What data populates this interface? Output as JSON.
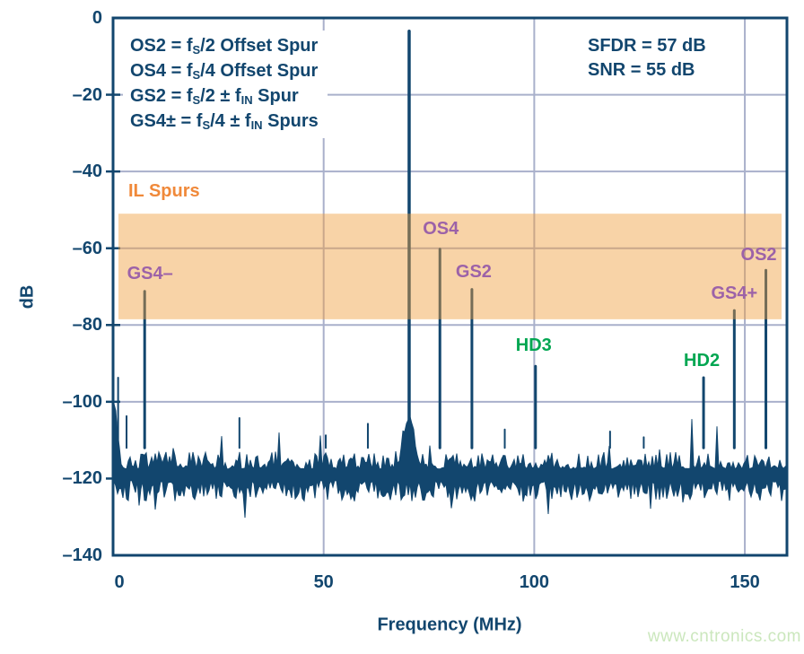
{
  "watermark": "www.cntronics.com",
  "colors": {
    "navy": "#12466e",
    "grid": "#a9b0cb",
    "band_overlay": "rgba(239,157,59,0.45)",
    "orange": "#f0893a",
    "purple": "#9c62a8",
    "green": "#00a651",
    "watermark_green": "#cbe7bd"
  },
  "chart_data": {
    "type": "line",
    "title": "",
    "xlabel": "Frequency (MHz)",
    "ylabel": "dB",
    "xlim": [
      0,
      160
    ],
    "ylim": [
      -140,
      0
    ],
    "grid": "on",
    "x_ticks": [
      {
        "v": 0,
        "label": "0"
      },
      {
        "v": 50,
        "label": "50"
      },
      {
        "v": 100,
        "label": "100"
      },
      {
        "v": 150,
        "label": "150"
      }
    ],
    "y_ticks": [
      {
        "v": 0,
        "label": "0"
      },
      {
        "v": -20,
        "label": "–20"
      },
      {
        "v": -40,
        "label": "–40"
      },
      {
        "v": -60,
        "label": "–60"
      },
      {
        "v": -80,
        "label": "–80"
      },
      {
        "v": -100,
        "label": "–100"
      },
      {
        "v": -120,
        "label": "–120"
      },
      {
        "v": -140,
        "label": "–140"
      }
    ],
    "legend_lines": [
      [
        {
          "t": "OS2 = f"
        },
        {
          "t": "S",
          "sub": true
        },
        {
          "t": "/2 Offset Spur"
        }
      ],
      [
        {
          "t": "OS4 = f"
        },
        {
          "t": "S",
          "sub": true
        },
        {
          "t": "/4 Offset Spur"
        }
      ],
      [
        {
          "t": "GS2 = f"
        },
        {
          "t": "S",
          "sub": true
        },
        {
          "t": "/2 ± f"
        },
        {
          "t": "IN",
          "sub": true
        },
        {
          "t": " Spur"
        }
      ],
      [
        {
          "t": "GS4± = f"
        },
        {
          "t": "S",
          "sub": true
        },
        {
          "t": "/4 ± f"
        },
        {
          "t": "IN",
          "sub": true
        },
        {
          "t": " Spurs"
        }
      ]
    ],
    "stats": [
      "SFDR = 57 dB",
      "SNR = 55 dB"
    ],
    "il_band": {
      "label": "IL Spurs",
      "top_db": -51,
      "bottom_db": -78.5
    },
    "carrier": {
      "f": 70.3,
      "db": -3.2
    },
    "spurs": [
      {
        "f": 1.2,
        "db": -93.5,
        "minor": true
      },
      {
        "f": 3.2,
        "db": -103.5,
        "minor": true
      },
      {
        "f": 7.5,
        "db": -71,
        "name": "GS4-"
      },
      {
        "f": 30,
        "db": -104,
        "minor": true
      },
      {
        "f": 50.5,
        "db": -108.5,
        "minor": true
      },
      {
        "f": 60.5,
        "db": -105.5,
        "minor": true
      },
      {
        "f": 70.3,
        "db": -3.2,
        "name": "carrier",
        "carrier": true
      },
      {
        "f": 77.6,
        "db": -60,
        "name": "OS4"
      },
      {
        "f": 85.2,
        "db": -70.5,
        "name": "GS2"
      },
      {
        "f": 93,
        "db": -107,
        "minor": true
      },
      {
        "f": 100.3,
        "db": -90.5,
        "name": "HD3"
      },
      {
        "f": 118,
        "db": -107.5,
        "minor": true
      },
      {
        "f": 126,
        "db": -109,
        "minor": true
      },
      {
        "f": 140.2,
        "db": -93.5,
        "name": "HD2"
      },
      {
        "f": 147.5,
        "db": -76,
        "name": "GS4+"
      },
      {
        "f": 155,
        "db": -65.5,
        "name": "OS2"
      }
    ],
    "annotations": [
      {
        "text": "GS4–",
        "f": 7.5,
        "db": -71,
        "dx": 6,
        "gap": 8,
        "color": "purple"
      },
      {
        "text": "OS4",
        "f": 77.6,
        "db": -60,
        "dx": 1,
        "gap": 11,
        "color": "purple"
      },
      {
        "text": "GS2",
        "f": 85.2,
        "db": -70.5,
        "dx": 2,
        "gap": 8,
        "color": "purple"
      },
      {
        "text": "HD3",
        "f": 100.3,
        "db": -90.5,
        "dx": -2,
        "gap": 11,
        "color": "green"
      },
      {
        "text": "HD2",
        "f": 140.2,
        "db": -93.5,
        "dx": -2,
        "gap": 7,
        "color": "green"
      },
      {
        "text": "GS4+",
        "f": 147.5,
        "db": -76,
        "dx": 0,
        "gap": 7,
        "color": "purple"
      },
      {
        "text": "OS2",
        "f": 155,
        "db": -65.5,
        "dx": -8,
        "gap": 5,
        "color": "purple"
      }
    ],
    "noise": {
      "seed": 7,
      "mean_db": -117.5,
      "upper_jitter_db": 4.5,
      "lower_jitter_db": 5.5,
      "spike_prob": 0.022,
      "spike_extra_db": 8,
      "dip_prob": 0.05,
      "dip_extra_db": 5.5,
      "bumps": [
        {
          "f": 0.2,
          "amp": 17,
          "sigma": 0.7
        },
        {
          "f": 70.3,
          "amp": 13,
          "sigma": 1.2
        }
      ]
    }
  }
}
